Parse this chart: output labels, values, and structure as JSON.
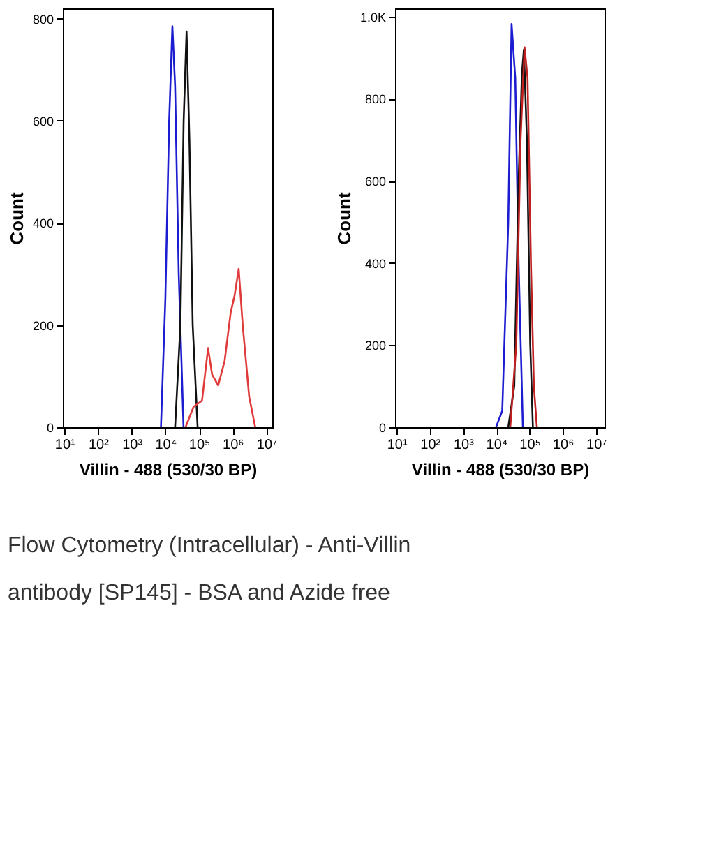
{
  "chart_data": [
    {
      "type": "line",
      "ylabel": "Count",
      "xlabel": "Villin - 488 (530/30 BP)",
      "log": "x",
      "grid": false,
      "marker": "none",
      "line_style": "solid",
      "xlim": [
        9,
        15000000
      ],
      "xticks": [
        {
          "value": 10,
          "label": "10¹"
        },
        {
          "value": 100,
          "label": "10²"
        },
        {
          "value": 1000,
          "label": "10³"
        },
        {
          "value": 10000,
          "label": "10⁴"
        },
        {
          "value": 100000,
          "label": "10⁵"
        },
        {
          "value": 1000000,
          "label": "10⁶"
        },
        {
          "value": 10000000,
          "label": "10⁷"
        }
      ],
      "ylim": [
        0,
        820
      ],
      "yticks": [
        0,
        200,
        400,
        600,
        800
      ],
      "series": [
        {
          "color": "#1c1cd0",
          "x": [
            7400,
            10000,
            13000,
            16200,
            19500,
            25000,
            34700
          ],
          "values": [
            0,
            250,
            600,
            785,
            668,
            300,
            0
          ]
        },
        {
          "color": "#111111",
          "x": [
            19500,
            28000,
            35000,
            42700,
            52000,
            65000,
            91000
          ],
          "values": [
            0,
            200,
            600,
            775,
            560,
            200,
            0
          ]
        },
        {
          "color": "#e03a3a",
          "x": [
            39800,
            69000,
            123000,
            186000,
            245000,
            372000,
            575000,
            871000,
            1150000,
            1510000,
            2000000,
            3090000,
            4680000
          ],
          "values": [
            0,
            40,
            52,
            155,
            103,
            82,
            129,
            224,
            259,
            310,
            198,
            60,
            0
          ]
        }
      ],
      "annotations": [
        "Flow Cytometry (Intracellular) - Anti-Villin antibody [SP145] - BSA and Azide free"
      ]
    },
    {
      "type": "line",
      "ylabel": "Count",
      "xlabel": "Villin - 488 (530/30 BP)",
      "log": "x",
      "grid": false,
      "marker": "none",
      "line_style": "solid",
      "xlim": [
        9,
        18000000
      ],
      "xticks": [
        {
          "value": 10,
          "label": "10¹"
        },
        {
          "value": 100,
          "label": "10²"
        },
        {
          "value": 1000,
          "label": "10³"
        },
        {
          "value": 10000,
          "label": "10⁴"
        },
        {
          "value": 100000,
          "label": "10⁵"
        },
        {
          "value": 1000000,
          "label": "10⁶"
        },
        {
          "value": 10000000,
          "label": "10⁷"
        }
      ],
      "ylim": [
        0,
        1020
      ],
      "yticks": [
        0,
        200,
        400,
        600,
        800,
        {
          "value": 1000,
          "label": "1.0K"
        }
      ],
      "series": [
        {
          "color": "#1c1cd0",
          "x": [
            9800,
            15100,
            22900,
            28800,
            37200,
            46800,
            63000
          ],
          "values": [
            0,
            40,
            500,
            982,
            850,
            400,
            0
          ]
        },
        {
          "color": "#111111",
          "x": [
            22900,
            34700,
            46800,
            58900,
            67600,
            83200,
            105000,
            126000
          ],
          "values": [
            0,
            100,
            600,
            860,
            920,
            700,
            200,
            0
          ]
        },
        {
          "color": "#c02020",
          "x": [
            26300,
            39800,
            53700,
            70800,
            87100,
            110000,
            135000,
            166000
          ],
          "values": [
            0,
            200,
            700,
            925,
            850,
            400,
            100,
            0
          ]
        }
      ]
    }
  ]
}
